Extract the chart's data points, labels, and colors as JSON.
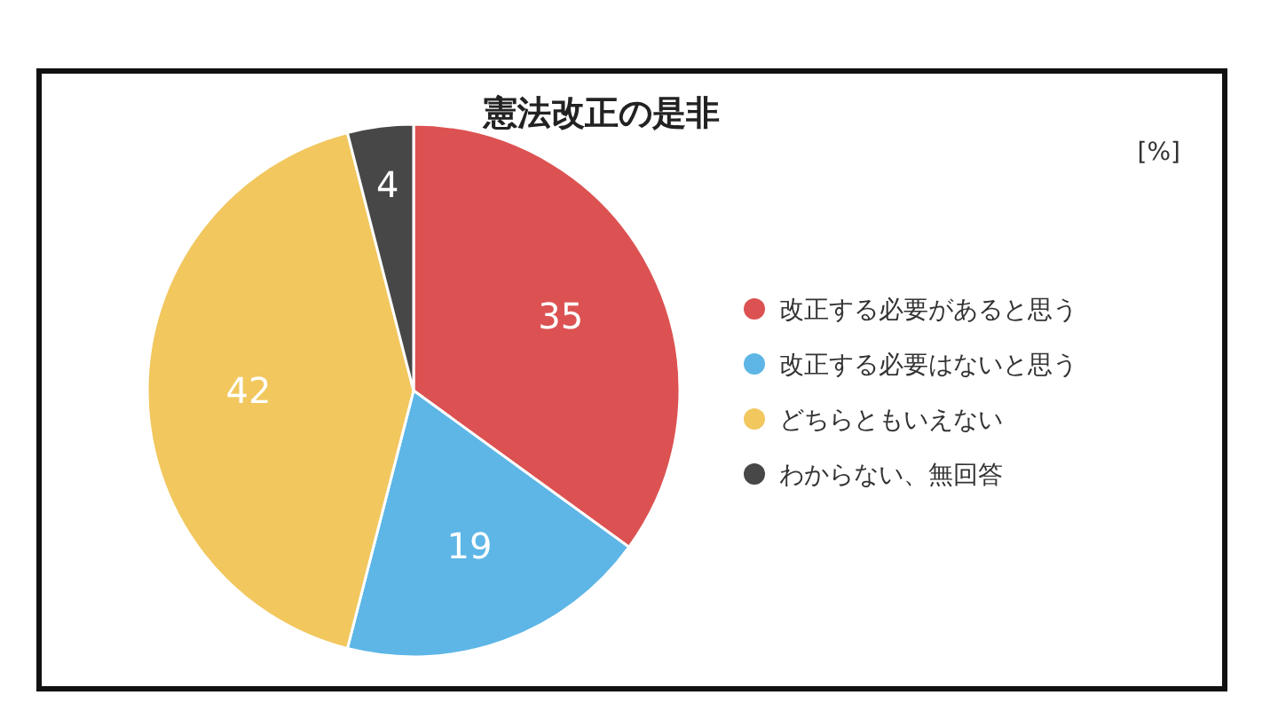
{
  "chart_data": {
    "type": "pie",
    "title": "憲法改正の是非",
    "categories": [
      "改正する必要があると思う",
      "改正する必要はないと思う",
      "どちらともいえない",
      "わからない、無回答"
    ],
    "values": [
      35,
      19,
      42,
      4
    ],
    "colors": [
      "#dc5252",
      "#5db6e6",
      "#f1c75e",
      "#474747"
    ],
    "data_labels": true,
    "legend": "right",
    "annotations": [
      "[%]"
    ]
  }
}
